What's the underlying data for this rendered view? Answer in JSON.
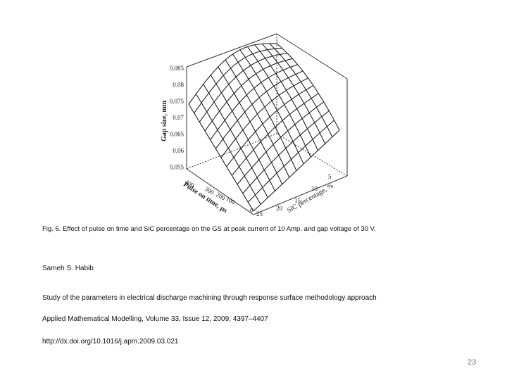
{
  "figure": {
    "z_axis_label": "Gap size, mm",
    "z_ticks": [
      "0.085",
      "0.08",
      "0.075",
      "0.07",
      "0.065",
      "0.06",
      "0.055"
    ],
    "x_axis_label": "Pulse on time, μs",
    "x_ticks": [
      "400",
      "300",
      "200",
      "100",
      "0"
    ],
    "y_axis_label": "SiC percentage, %",
    "y_ticks": [
      "25",
      "20",
      "15",
      "10",
      "5"
    ]
  },
  "caption": "Fig. 6. Effect of pulse on time and SiC percentage on the GS at peak current of 10 Amp. and gap voltage of 30 V.",
  "author": "Sameh S. Habib",
  "paper_title": "Study of the parameters in electrical discharge machining through response surface methodology approach",
  "journal": "Applied Mathematical Modelling, Volume 33, Issue 12, 2009, 4397–4407",
  "url": "http://dx.doi.org/10.1016/j.apm.2009.03.021",
  "page_number": "23"
}
